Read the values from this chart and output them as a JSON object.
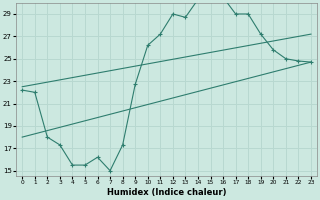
{
  "xlabel": "Humidex (Indice chaleur)",
  "ylabel": "",
  "xlim": [
    -0.5,
    23.5
  ],
  "ylim": [
    14.5,
    30.0
  ],
  "xticks": [
    0,
    1,
    2,
    3,
    4,
    5,
    6,
    7,
    8,
    9,
    10,
    11,
    12,
    13,
    14,
    15,
    16,
    17,
    18,
    19,
    20,
    21,
    22,
    23
  ],
  "yticks": [
    15,
    17,
    19,
    21,
    23,
    25,
    27,
    29
  ],
  "bg_color": "#cce8e0",
  "line_color": "#2e7d6e",
  "grid_color": "#b8d8d0",
  "line1_x": [
    0,
    1,
    2,
    3,
    4,
    5,
    6,
    7,
    8,
    9,
    10,
    11,
    12,
    13,
    14,
    15,
    16,
    17,
    18,
    19,
    20,
    21,
    22,
    23
  ],
  "line1_y": [
    22.2,
    22.0,
    18.0,
    17.3,
    15.5,
    15.5,
    16.2,
    15.0,
    17.3,
    22.7,
    26.2,
    27.2,
    29.0,
    28.7,
    30.3,
    30.4,
    30.5,
    29.0,
    29.0,
    27.2,
    25.8,
    25.0,
    24.8,
    24.7
  ],
  "line2_x": [
    0,
    23
  ],
  "line2_y": [
    22.5,
    27.2
  ],
  "line3_x": [
    0,
    23
  ],
  "line3_y": [
    18.0,
    24.7
  ]
}
